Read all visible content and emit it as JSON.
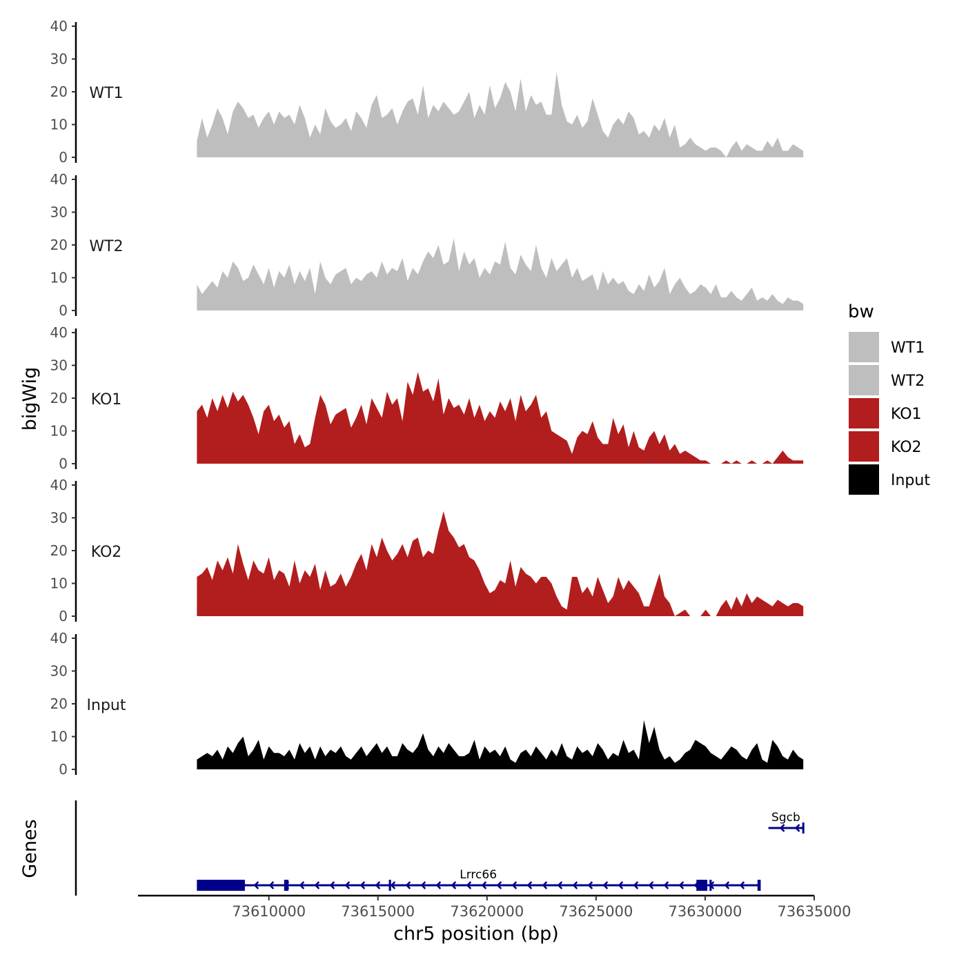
{
  "chart_data": {
    "type": "area",
    "y_axis_label": "bigWig",
    "x_axis_label": "chr5 position (bp)",
    "x_range": [
      73604000,
      73635000
    ],
    "x_ticks": [
      73610000,
      73615000,
      73620000,
      73625000,
      73630000,
      73635000
    ],
    "y_range": [
      0,
      40
    ],
    "y_ticks": [
      0,
      10,
      20,
      30,
      40
    ],
    "legend": {
      "title": "bw",
      "position": "right",
      "entries": [
        {
          "label": "WT1",
          "color": "#bebebe"
        },
        {
          "label": "WT2",
          "color": "#bebebe"
        },
        {
          "label": "KO1",
          "color": "#b21e1e"
        },
        {
          "label": "KO2",
          "color": "#b21e1e"
        },
        {
          "label": "Input",
          "color": "#000000"
        }
      ]
    },
    "series_x_range": [
      73606700,
      73634500
    ],
    "series": [
      {
        "name": "WT1",
        "color": "#bebebe",
        "values": [
          5,
          12,
          6,
          10,
          15,
          12,
          7,
          14,
          17,
          15,
          12,
          13,
          9,
          12,
          14,
          10,
          14,
          12,
          13,
          10,
          16,
          12,
          6,
          10,
          7,
          15,
          11,
          9,
          10,
          12,
          8,
          14,
          12,
          9,
          16,
          19,
          12,
          13,
          15,
          10,
          14,
          17,
          18,
          13,
          22,
          12,
          16,
          14,
          17,
          15,
          13,
          14,
          17,
          20,
          12,
          16,
          13,
          22,
          15,
          18,
          23,
          20,
          14,
          24,
          14,
          19,
          16,
          17,
          13,
          13,
          26,
          16,
          11,
          10,
          13,
          9,
          11,
          18,
          13,
          8,
          6,
          10,
          12,
          10,
          14,
          12,
          7,
          8,
          6,
          10,
          8,
          12,
          6,
          10,
          3,
          4,
          6,
          4,
          3,
          2,
          3,
          3,
          2,
          0,
          3,
          5,
          2,
          4,
          3,
          2,
          2,
          5,
          3,
          6,
          2,
          2,
          4,
          3,
          2
        ]
      },
      {
        "name": "WT2",
        "color": "#bebebe",
        "values": [
          8,
          5,
          7,
          9,
          7,
          12,
          10,
          15,
          13,
          9,
          10,
          14,
          11,
          8,
          13,
          7,
          12,
          10,
          14,
          8,
          12,
          9,
          13,
          5,
          15,
          10,
          8,
          11,
          12,
          13,
          8,
          10,
          9,
          11,
          12,
          10,
          15,
          11,
          13,
          12,
          16,
          9,
          13,
          11,
          15,
          18,
          16,
          20,
          14,
          15,
          22,
          12,
          18,
          14,
          16,
          10,
          13,
          11,
          15,
          14,
          21,
          13,
          11,
          17,
          14,
          12,
          20,
          13,
          10,
          16,
          12,
          14,
          16,
          10,
          13,
          9,
          10,
          11,
          6,
          12,
          8,
          10,
          8,
          9,
          6,
          5,
          8,
          6,
          11,
          7,
          9,
          13,
          5,
          8,
          10,
          7,
          5,
          6,
          8,
          7,
          5,
          8,
          4,
          4,
          6,
          4,
          3,
          5,
          7,
          3,
          4,
          3,
          5,
          3,
          2,
          4,
          3,
          3,
          2
        ]
      },
      {
        "name": "KO1",
        "color": "#b21e1e",
        "values": [
          16,
          18,
          14,
          20,
          16,
          21,
          17,
          22,
          19,
          21,
          18,
          14,
          9,
          16,
          18,
          13,
          15,
          11,
          13,
          6,
          9,
          5,
          6,
          14,
          21,
          18,
          12,
          15,
          16,
          17,
          11,
          14,
          18,
          12,
          20,
          17,
          14,
          22,
          18,
          20,
          13,
          25,
          21,
          28,
          22,
          23,
          19,
          26,
          15,
          20,
          17,
          18,
          15,
          20,
          14,
          18,
          13,
          16,
          14,
          19,
          16,
          20,
          13,
          21,
          16,
          18,
          21,
          14,
          16,
          10,
          9,
          8,
          7,
          3,
          8,
          10,
          9,
          13,
          8,
          6,
          6,
          14,
          9,
          12,
          5,
          10,
          5,
          4,
          8,
          10,
          6,
          9,
          4,
          6,
          3,
          4,
          3,
          2,
          1,
          1,
          0,
          0,
          0,
          1,
          0,
          1,
          0,
          0,
          1,
          0,
          0,
          1,
          0,
          2,
          4,
          2,
          1,
          1,
          1
        ]
      },
      {
        "name": "KO2",
        "color": "#b21e1e",
        "values": [
          12,
          13,
          15,
          11,
          17,
          14,
          18,
          13,
          22,
          16,
          11,
          17,
          14,
          13,
          18,
          11,
          14,
          13,
          9,
          17,
          10,
          14,
          12,
          16,
          8,
          14,
          9,
          10,
          13,
          9,
          12,
          16,
          19,
          14,
          22,
          18,
          24,
          20,
          17,
          19,
          22,
          18,
          23,
          24,
          18,
          20,
          19,
          26,
          32,
          26,
          24,
          21,
          22,
          18,
          17,
          14,
          10,
          7,
          8,
          11,
          10,
          17,
          9,
          15,
          13,
          12,
          10,
          12,
          12,
          10,
          6,
          3,
          2,
          12,
          12,
          7,
          9,
          6,
          12,
          8,
          4,
          6,
          12,
          8,
          11,
          9,
          7,
          3,
          3,
          8,
          13,
          6,
          4,
          0,
          1,
          2,
          0,
          0,
          0,
          2,
          0,
          0,
          3,
          5,
          2,
          6,
          3,
          7,
          4,
          6,
          5,
          4,
          3,
          5,
          4,
          3,
          4,
          4,
          3
        ]
      },
      {
        "name": "Input",
        "color": "#000000",
        "values": [
          3,
          4,
          5,
          4,
          6,
          3,
          7,
          5,
          8,
          10,
          4,
          6,
          9,
          3,
          7,
          5,
          5,
          4,
          6,
          3,
          8,
          5,
          7,
          3,
          7,
          4,
          6,
          5,
          7,
          4,
          3,
          5,
          7,
          4,
          6,
          8,
          5,
          7,
          4,
          4,
          8,
          6,
          5,
          7,
          11,
          6,
          4,
          7,
          5,
          8,
          6,
          4,
          4,
          5,
          9,
          3,
          7,
          5,
          6,
          4,
          7,
          3,
          2,
          5,
          6,
          4,
          7,
          5,
          3,
          6,
          4,
          8,
          4,
          3,
          7,
          5,
          6,
          4,
          8,
          6,
          3,
          5,
          4,
          9,
          5,
          6,
          3,
          15,
          8,
          13,
          6,
          3,
          4,
          2,
          3,
          5,
          6,
          9,
          8,
          7,
          5,
          4,
          3,
          5,
          7,
          6,
          4,
          3,
          6,
          8,
          3,
          2,
          9,
          7,
          4,
          3,
          6,
          4,
          3
        ]
      }
    ],
    "genes_track_label": "Genes",
    "genes": [
      {
        "name": "Lrrc66",
        "strand": "-",
        "start": 73606700,
        "end": 73632500,
        "exons": [
          [
            73606700,
            73608900
          ],
          [
            73610700,
            73610900
          ],
          [
            73615500,
            73615600
          ],
          [
            73629600,
            73630100
          ],
          [
            73630200,
            73630300
          ],
          [
            73632400,
            73632500
          ]
        ]
      },
      {
        "name": "Sgcb",
        "strand": "-",
        "start": 73632900,
        "end": 73634500,
        "exons": []
      }
    ]
  }
}
